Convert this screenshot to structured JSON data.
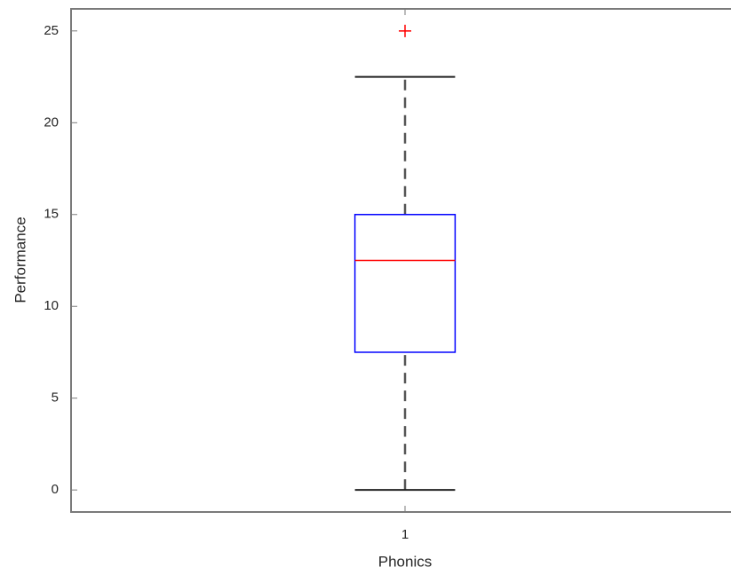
{
  "chart_data": {
    "type": "box",
    "xlabel": "Phonics",
    "ylabel": "Performance",
    "categories": [
      "1"
    ],
    "boxes": [
      {
        "whisker_low": 0,
        "q1": 7.5,
        "median": 12.5,
        "q3": 15,
        "whisker_high": 22.5,
        "outliers": [
          25
        ]
      }
    ],
    "box_color": "#0000ff",
    "median_color": "#ff0000",
    "whisker_color": "#555555",
    "outlier_color": "#ff0000",
    "ylim": [
      -1.2,
      26.2
    ],
    "yticks": [
      0,
      5,
      10,
      15,
      20,
      25
    ],
    "grid": false
  }
}
